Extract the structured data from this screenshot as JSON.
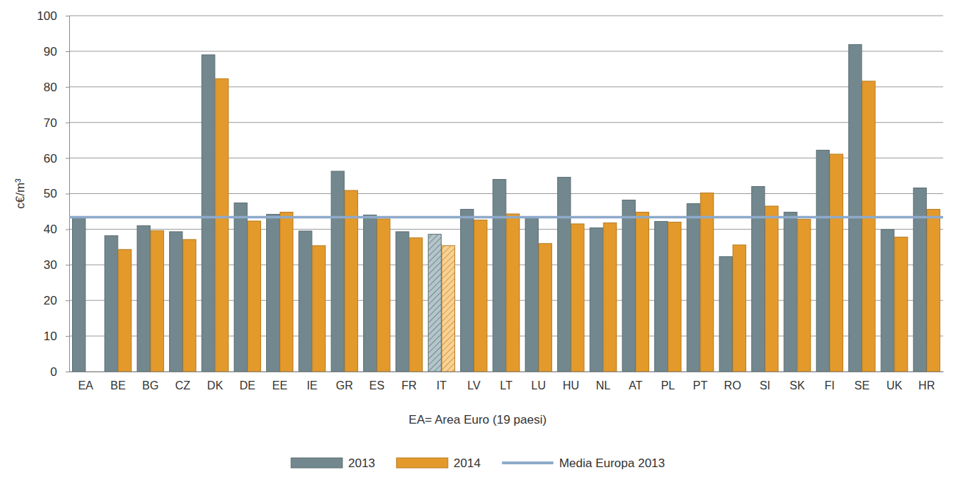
{
  "chart_data": {
    "type": "bar",
    "y_label": "c€/m³",
    "x_label": "EA= Area Euro (19 paesi)",
    "categories": [
      "EA",
      "BE",
      "BG",
      "CZ",
      "DK",
      "DE",
      "EE",
      "IE",
      "GR",
      "ES",
      "FR",
      "IT",
      "LV",
      "LT",
      "LU",
      "HU",
      "NL",
      "AT",
      "PL",
      "PT",
      "RO",
      "SI",
      "SK",
      "FI",
      "SE",
      "UK",
      "HR"
    ],
    "series": [
      {
        "name": "2013",
        "color": "#72888e",
        "colors": [
          "#72888e",
          "#72888e",
          "#72888e",
          "#72888e",
          "#72888e",
          "#72888e",
          "#72888e",
          "#72888e",
          "#72888e",
          "#72888e",
          "#72888e",
          "#b5c6cb",
          "#72888e",
          "#72888e",
          "#72888e",
          "#72888e",
          "#72888e",
          "#72888e",
          "#72888e",
          "#72888e",
          "#72888e",
          "#72888e",
          "#72888e",
          "#72888e",
          "#72888e",
          "#72888e",
          "#72888e"
        ],
        "values": [
          43.2,
          38.2,
          41.0,
          39.3,
          89.0,
          47.4,
          44.2,
          39.5,
          56.3,
          44.0,
          39.3,
          38.6,
          45.6,
          54.0,
          43.3,
          54.6,
          40.4,
          48.2,
          42.2,
          47.2,
          32.3,
          52.0,
          44.8,
          62.2,
          91.9,
          39.9,
          51.6
        ]
      },
      {
        "name": "2014",
        "color": "#e39a2b",
        "colors": [
          "#e39a2b",
          "#e39a2b",
          "#e39a2b",
          "#e39a2b",
          "#e39a2b",
          "#e39a2b",
          "#e39a2b",
          "#e39a2b",
          "#e39a2b",
          "#e39a2b",
          "#e39a2b",
          "#f6d29a",
          "#e39a2b",
          "#e39a2b",
          "#e39a2b",
          "#e39a2b",
          "#e39a2b",
          "#e39a2b",
          "#e39a2b",
          "#e39a2b",
          "#e39a2b",
          "#e39a2b",
          "#e39a2b",
          "#e39a2b",
          "#e39a2b",
          "#e39a2b",
          "#e39a2b"
        ],
        "values": [
          null,
          34.3,
          39.6,
          37.1,
          82.3,
          42.3,
          44.8,
          35.4,
          50.9,
          42.9,
          37.6,
          35.4,
          42.6,
          44.3,
          36.0,
          41.5,
          41.8,
          44.8,
          42.0,
          50.2,
          35.6,
          46.5,
          42.8,
          61.1,
          81.6,
          37.8,
          45.6
        ]
      }
    ],
    "reference_lines": [
      {
        "name": "Media Europa 2013",
        "value": 43.4,
        "color": "#8eaacb"
      }
    ],
    "ylim": [
      0,
      100
    ],
    "yticks": [
      0,
      10,
      20,
      30,
      40,
      50,
      60,
      70,
      80,
      90,
      100
    ],
    "grid": true,
    "legend": "bottom"
  }
}
